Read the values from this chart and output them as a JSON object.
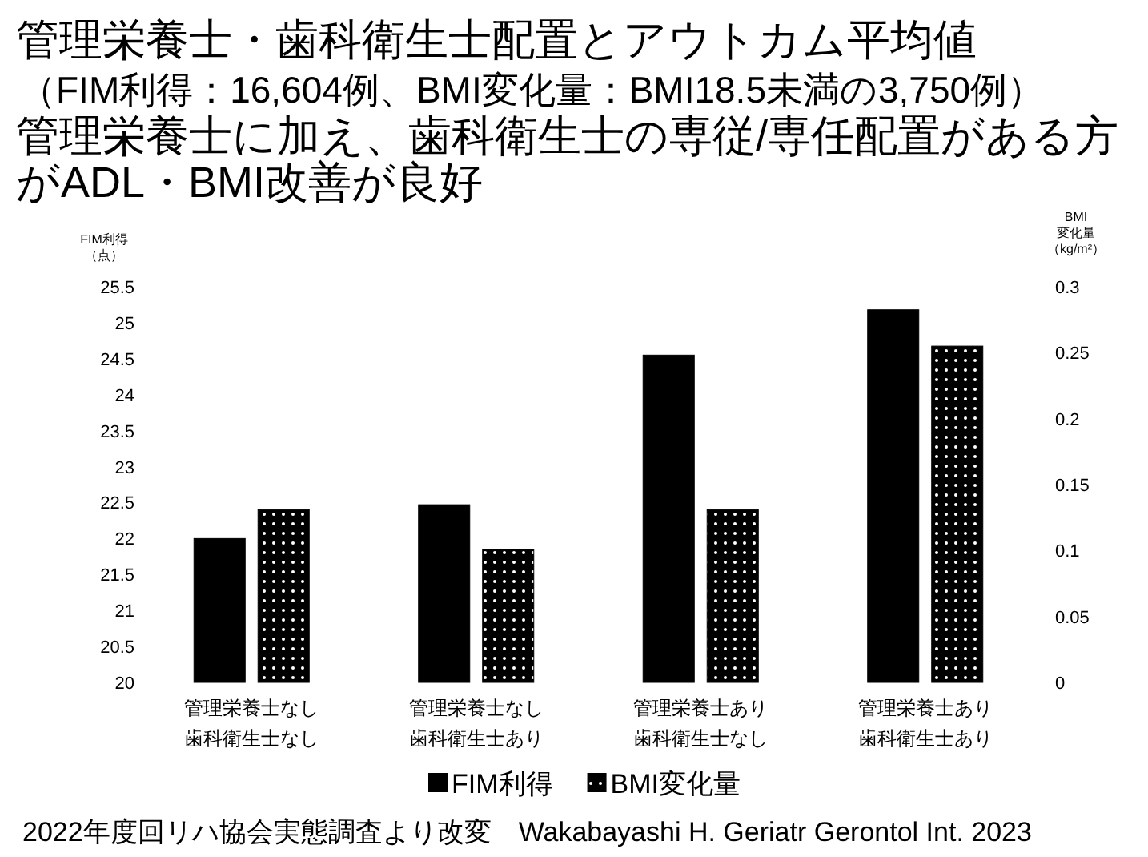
{
  "chart_data": {
    "type": "bar",
    "title": "管理栄養士・歯科衛生士配置とアウトカム平均値",
    "subtitle": "（FIM利得：16,604例、BMI変化量：BMI18.5未満の3,750例）",
    "annotations": [
      "管理栄養士に加え、歯科衛生士の専従/専任配置がある方がADL・BMI改善が良好",
      "2022年度回リハ協会実態調査より改変　Wakabayashi H. Geriatr Gerontol Int. 2023"
    ],
    "categories": [
      "管理栄養士なし歯科衛生士なし",
      "管理栄養士なし歯科衛生士あり",
      "管理栄養士あり歯科衛生士なし",
      "管理栄養士あり歯科衛生士あり"
    ],
    "series": [
      {
        "name": "FIM利得",
        "color": "#000000",
        "values": [
          22.0,
          22.47,
          24.55,
          25.18
        ]
      },
      {
        "name": "BMI変化量",
        "color": "#000000",
        "axis": "y2",
        "values": [
          0.131,
          0.101,
          0.131,
          0.255
        ]
      }
    ],
    "ylabel": "FIM利得（点）",
    "y2label": "BMI変化量（kg/m²）",
    "ylim": [
      20,
      25.5
    ],
    "yticks": [
      20,
      20.5,
      21,
      21.5,
      22,
      22.5,
      23,
      23.5,
      24,
      24.5,
      25,
      25.5
    ],
    "y2lim": [
      0,
      0.3
    ],
    "y2ticks": [
      0,
      0.05,
      0.1,
      0.15,
      0.2,
      0.25,
      0.3
    ],
    "legend": "bottom"
  }
}
